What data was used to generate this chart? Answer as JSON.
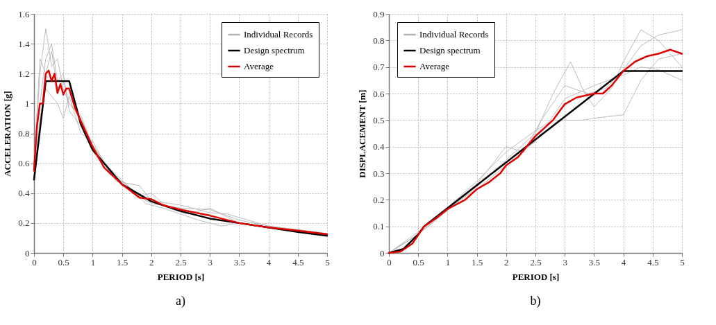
{
  "chart_data": [
    {
      "type": "line",
      "xlabel": "PERIOD [s]",
      "ylabel": "ACCELERATION [g]",
      "annotations": [
        "a)"
      ],
      "xlim": [
        0,
        5
      ],
      "ylim": [
        0,
        1.6
      ],
      "xticks": [
        0,
        0.5,
        1,
        1.5,
        2,
        2.5,
        3,
        3.5,
        4,
        4.5,
        5
      ],
      "yticks": [
        0,
        0.2,
        0.4,
        0.6,
        0.8,
        1,
        1.2,
        1.4,
        1.6
      ],
      "grid": true,
      "legend": "top right",
      "series": [
        {
          "name": "Individual Records",
          "color": "#b4b4b4",
          "x": [
            0,
            0.1,
            0.2,
            0.3,
            0.4,
            0.5,
            0.6,
            0.8,
            1,
            1.5,
            2,
            2.5,
            3,
            3.5,
            4,
            5
          ],
          "values": [
            0.55,
            1.2,
            1.5,
            1.25,
            1.3,
            1.1,
            1.0,
            0.9,
            0.72,
            0.45,
            0.33,
            0.3,
            0.29,
            0.22,
            0.18,
            0.13
          ]
        },
        {
          "color": "#b4b4b4",
          "x": [
            0,
            0.1,
            0.2,
            0.3,
            0.4,
            0.5,
            0.6,
            0.8,
            1,
            1.3,
            1.5,
            1.8,
            2,
            2.3,
            2.6,
            3,
            3.5,
            4,
            5
          ],
          "values": [
            0.6,
            1.0,
            1.3,
            1.4,
            1.15,
            1.2,
            0.95,
            0.85,
            0.68,
            0.52,
            0.48,
            0.38,
            0.4,
            0.3,
            0.26,
            0.3,
            0.2,
            0.17,
            0.12
          ]
        },
        {
          "color": "#b4b4b4",
          "x": [
            0,
            0.1,
            0.2,
            0.3,
            0.4,
            0.5,
            0.6,
            0.8,
            1,
            1.2,
            1.6,
            1.9,
            2.2,
            2.5,
            2.8,
            3.2,
            3.5,
            4,
            5
          ],
          "values": [
            0.5,
            0.9,
            1.1,
            1.05,
            1.0,
            0.9,
            1.05,
            0.8,
            0.75,
            0.6,
            0.45,
            0.33,
            0.3,
            0.26,
            0.22,
            0.18,
            0.2,
            0.17,
            0.12
          ]
        },
        {
          "color": "#b4b4b4",
          "x": [
            0,
            0.1,
            0.2,
            0.3,
            0.4,
            0.5,
            0.6,
            0.8,
            1,
            1.4,
            1.8,
            2,
            2.5,
            3,
            3.3,
            4,
            5
          ],
          "values": [
            0.58,
            1.3,
            1.2,
            1.35,
            1.1,
            1.15,
            1.0,
            0.92,
            0.72,
            0.48,
            0.45,
            0.35,
            0.32,
            0.27,
            0.26,
            0.18,
            0.13
          ]
        },
        {
          "name": "Design spectrum",
          "color": "#000000",
          "x": [
            0,
            0.2,
            0.6,
            0.8,
            1,
            1.5,
            2,
            2.5,
            3,
            3.5,
            4,
            4.5,
            5
          ],
          "values": [
            0.49,
            1.15,
            1.15,
            0.86,
            0.69,
            0.46,
            0.345,
            0.28,
            0.23,
            0.2,
            0.17,
            0.14,
            0.115
          ]
        },
        {
          "name": "Average",
          "color": "#e00000",
          "x": [
            0,
            0.05,
            0.1,
            0.15,
            0.2,
            0.25,
            0.3,
            0.35,
            0.4,
            0.45,
            0.5,
            0.55,
            0.6,
            0.7,
            0.8,
            1,
            1.2,
            1.5,
            1.7,
            1.8,
            2,
            2.2,
            2.5,
            3,
            3.5,
            4,
            4.5,
            5
          ],
          "values": [
            0.55,
            0.85,
            1.0,
            1.0,
            1.2,
            1.22,
            1.15,
            1.2,
            1.07,
            1.13,
            1.06,
            1.1,
            1.1,
            0.97,
            0.88,
            0.71,
            0.57,
            0.46,
            0.4,
            0.37,
            0.36,
            0.32,
            0.29,
            0.25,
            0.2,
            0.17,
            0.15,
            0.125
          ]
        }
      ]
    },
    {
      "type": "line",
      "xlabel": "PERIOD [s]",
      "ylabel": "DISPLACEMENT [m]",
      "annotations": [
        "b)"
      ],
      "xlim": [
        0,
        5
      ],
      "ylim": [
        0,
        0.9
      ],
      "xticks": [
        0,
        0.5,
        1,
        1.5,
        2,
        2.5,
        3,
        3.5,
        4,
        4.5,
        5
      ],
      "yticks": [
        0,
        0.1,
        0.2,
        0.3,
        0.4,
        0.5,
        0.6,
        0.7,
        0.8,
        0.9
      ],
      "grid": true,
      "legend": "top left",
      "series": [
        {
          "name": "Individual Records",
          "color": "#b4b4b4",
          "x": [
            0,
            0.5,
            1,
            1.5,
            2,
            2.5,
            2.8,
            3.1,
            3.3,
            3.5,
            3.8,
            4,
            4.3,
            4.6,
            5
          ],
          "values": [
            0,
            0.07,
            0.16,
            0.25,
            0.35,
            0.45,
            0.6,
            0.72,
            0.62,
            0.55,
            0.62,
            0.72,
            0.84,
            0.8,
            0.7
          ]
        },
        {
          "color": "#b4b4b4",
          "x": [
            0,
            0.5,
            1,
            1.5,
            2,
            2.5,
            2.8,
            3,
            3.3,
            3.6,
            4,
            4.3,
            4.6,
            5
          ],
          "values": [
            0,
            0.08,
            0.17,
            0.27,
            0.38,
            0.46,
            0.5,
            0.5,
            0.5,
            0.51,
            0.52,
            0.65,
            0.73,
            0.75
          ]
        },
        {
          "color": "#b4b4b4",
          "x": [
            0,
            0.5,
            1,
            1.5,
            2,
            2.3,
            2.6,
            3,
            3.4,
            3.7,
            4,
            4.3,
            4.6,
            5
          ],
          "values": [
            0,
            0.07,
            0.16,
            0.26,
            0.4,
            0.38,
            0.5,
            0.63,
            0.6,
            0.62,
            0.69,
            0.78,
            0.82,
            0.84
          ]
        },
        {
          "color": "#b4b4b4",
          "x": [
            0,
            0.5,
            1,
            1.5,
            2,
            2.5,
            3,
            3.5,
            4,
            4.3,
            4.6,
            5
          ],
          "values": [
            0,
            0.07,
            0.17,
            0.24,
            0.33,
            0.42,
            0.58,
            0.63,
            0.67,
            0.7,
            0.69,
            0.65
          ]
        },
        {
          "name": "Design spectrum",
          "color": "#000000",
          "x": [
            0,
            0.25,
            0.5,
            0.6,
            4,
            5
          ],
          "values": [
            0,
            0.015,
            0.07,
            0.1,
            0.685,
            0.685
          ]
        },
        {
          "name": "Average",
          "color": "#e00000",
          "x": [
            0,
            0.2,
            0.4,
            0.6,
            0.8,
            1,
            1.3,
            1.5,
            1.7,
            1.9,
            2,
            2.2,
            2.5,
            2.8,
            3,
            3.2,
            3.5,
            3.65,
            3.8,
            4,
            4.2,
            4.4,
            4.6,
            4.8,
            5
          ],
          "values": [
            0,
            0.005,
            0.035,
            0.1,
            0.13,
            0.165,
            0.2,
            0.24,
            0.265,
            0.3,
            0.33,
            0.36,
            0.44,
            0.5,
            0.56,
            0.585,
            0.6,
            0.6,
            0.63,
            0.685,
            0.72,
            0.74,
            0.75,
            0.765,
            0.75
          ]
        }
      ]
    }
  ]
}
